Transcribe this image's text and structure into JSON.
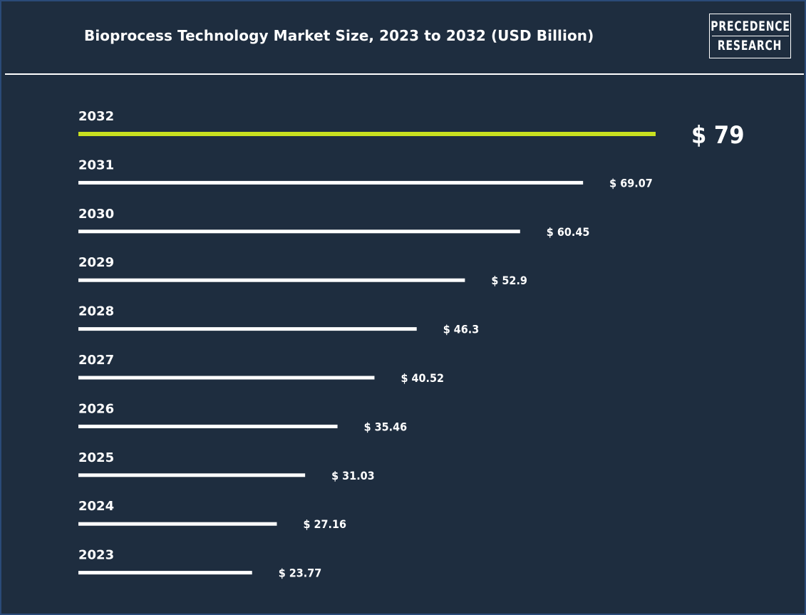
{
  "header": {
    "title": "Bioprocess Technology Market Size, 2023 to 2032 (USD Billion)",
    "logo": {
      "line1": "PRECEDENCE",
      "line2": "RESEARCH"
    }
  },
  "colors": {
    "background": "#1e2d3f",
    "bar": "#ffffff",
    "highlight_bar": "#c8e020",
    "text": "#ffffff"
  },
  "chart_data": {
    "type": "bar",
    "orientation": "horizontal",
    "title": "Bioprocess Technology Market Size, 2023 to 2032 (USD Billion)",
    "xlabel": "",
    "ylabel": "",
    "grid": false,
    "categories": [
      "2032",
      "2031",
      "2030",
      "2029",
      "2028",
      "2027",
      "2026",
      "2025",
      "2024",
      "2023"
    ],
    "values": [
      79,
      69.07,
      60.45,
      52.9,
      46.3,
      40.52,
      35.46,
      31.03,
      27.16,
      23.77
    ],
    "value_labels": [
      "$ 79",
      "$ 69.07",
      "$ 60.45",
      "$ 52.9",
      "$ 46.3",
      "$ 40.52",
      "$ 35.46",
      "$ 31.03",
      "$ 27.16",
      "$ 23.77"
    ],
    "highlight_category": "2032"
  }
}
